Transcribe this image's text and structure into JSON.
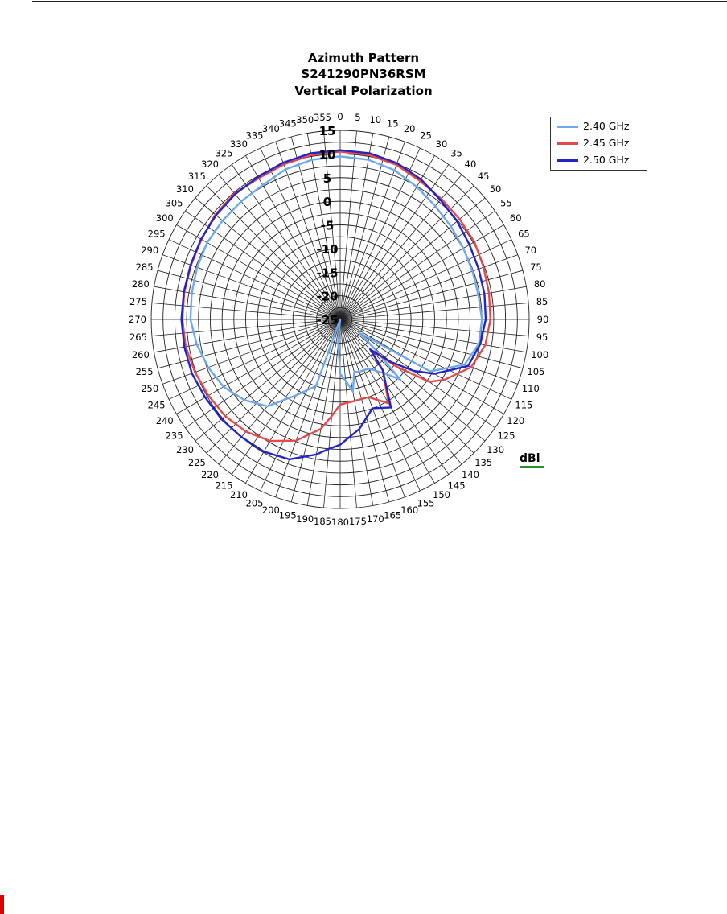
{
  "page": {
    "marker_color": "#e00000"
  },
  "chart_data": {
    "type": "polar-line",
    "title_lines": [
      "Azimuth Pattern",
      "S241290PN36RSM",
      "Vertical Polarization"
    ],
    "unit_label": "dBi",
    "unit_underline_color": "#2e8b2e",
    "radial_range": [
      -25,
      15
    ],
    "radial_ticks": [
      -25,
      -20,
      -15,
      -10,
      -5,
      0,
      5,
      10,
      15
    ],
    "radial_tick_labels": [
      "-25",
      "-20",
      "-15",
      "-10",
      "-5",
      "0",
      "5",
      "10",
      "15"
    ],
    "angle_step": 5,
    "angle_labels": [
      "0",
      "5",
      "10",
      "15",
      "20",
      "25",
      "30",
      "35",
      "40",
      "45",
      "50",
      "55",
      "60",
      "65",
      "70",
      "75",
      "80",
      "85",
      "90",
      "95",
      "100",
      "105",
      "110",
      "115",
      "120",
      "125",
      "130",
      "135",
      "140",
      "145",
      "150",
      "155",
      "160",
      "165",
      "170",
      "175",
      "180",
      "185",
      "190",
      "195",
      "200",
      "205",
      "210",
      "215",
      "220",
      "225",
      "230",
      "235",
      "240",
      "245",
      "250",
      "255",
      "260",
      "265",
      "270",
      "275",
      "280",
      "285",
      "290",
      "295",
      "300",
      "305",
      "310",
      "315",
      "320",
      "325",
      "330",
      "335",
      "340",
      "345",
      "350",
      "355"
    ],
    "grid": true,
    "legend_position": "top-right",
    "series": [
      {
        "name": "2.40 GHz",
        "color": "#6fa8ee",
        "angles": [
          0,
          10,
          20,
          30,
          40,
          50,
          60,
          70,
          80,
          90,
          100,
          110,
          120,
          125,
          130,
          135,
          140,
          150,
          160,
          165,
          170,
          175,
          180,
          185,
          190,
          200,
          210,
          220,
          230,
          240,
          250,
          260,
          270,
          280,
          290,
          300,
          310,
          320,
          330,
          340,
          350
        ],
        "values": [
          9.5,
          9.3,
          8.6,
          7.4,
          6.3,
          5.6,
          5.1,
          4.8,
          4.7,
          5.0,
          4.8,
          3.0,
          -3.0,
          -20.0,
          -16.0,
          -7.0,
          -10.0,
          -13.0,
          -13.2,
          -13.5,
          -9.5,
          -12.0,
          -13.5,
          -20.0,
          -25.0,
          -10.0,
          -6.5,
          -1.0,
          1.5,
          3.5,
          4.7,
          5.8,
          6.7,
          6.9,
          7.2,
          7.5,
          7.5,
          7.6,
          7.8,
          8.8,
          9.3
        ]
      },
      {
        "name": "2.45 GHz",
        "color": "#e24b4b",
        "angles": [
          0,
          10,
          20,
          30,
          40,
          50,
          60,
          70,
          80,
          90,
          100,
          110,
          120,
          125,
          130,
          135,
          140,
          150,
          160,
          170,
          180,
          185,
          190,
          200,
          210,
          220,
          230,
          240,
          250,
          260,
          270,
          280,
          290,
          300,
          310,
          320,
          330,
          340,
          350
        ],
        "values": [
          10.5,
          10.3,
          9.8,
          8.8,
          8.3,
          8.0,
          7.8,
          7.3,
          7.0,
          6.8,
          6.2,
          4.5,
          0.5,
          -2.0,
          -9.5,
          -16.0,
          -11.0,
          -4.5,
          -7.5,
          -7.5,
          -7.0,
          -4.5,
          -1.5,
          2.3,
          4.7,
          6.0,
          6.8,
          7.2,
          7.7,
          8.2,
          8.4,
          8.5,
          8.6,
          8.9,
          9.5,
          9.8,
          9.5,
          9.9,
          10.3
        ]
      },
      {
        "name": "2.50 GHz",
        "color": "#2323c8",
        "angles": [
          0,
          10,
          20,
          30,
          40,
          50,
          60,
          70,
          80,
          90,
          100,
          110,
          120,
          125,
          130,
          135,
          140,
          150,
          160,
          170,
          180,
          185,
          190,
          200,
          210,
          220,
          230,
          240,
          250,
          260,
          270,
          280,
          290,
          300,
          310,
          320,
          330,
          340,
          350
        ],
        "values": [
          10.8,
          10.7,
          10.2,
          9.2,
          8.0,
          7.3,
          6.6,
          6.2,
          6.0,
          5.8,
          5.1,
          3.8,
          -2.0,
          -6.0,
          -11.0,
          -16.0,
          -11.0,
          -3.5,
          -5.0,
          -1.5,
          1.5,
          2.5,
          4.0,
          6.5,
          7.3,
          7.5,
          7.8,
          8.0,
          8.4,
          8.5,
          8.6,
          8.6,
          8.7,
          9.0,
          9.3,
          9.6,
          9.8,
          10.3,
          10.7
        ]
      }
    ]
  }
}
